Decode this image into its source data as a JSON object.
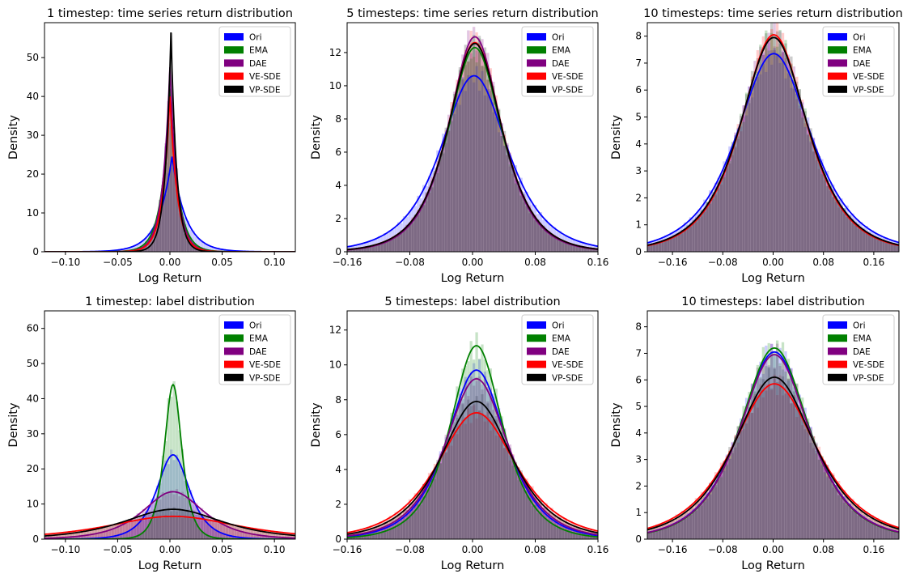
{
  "legend_labels": [
    "Ori",
    "EMA",
    "DAE",
    "VE-SDE",
    "VP-SDE"
  ],
  "series_colors": {
    "Ori": "#0000ff",
    "EMA": "#008000",
    "DAE": "#800080",
    "VE-SDE": "#ff0000",
    "VP-SDE": "#000000"
  },
  "chart_data": [
    {
      "type": "area",
      "title": "1 timestep: time series return distribution",
      "xlabel": "Log Return",
      "ylabel": "Density",
      "xlim": [
        -0.12,
        0.12
      ],
      "ylim": [
        0,
        59
      ],
      "xticks": [
        -0.1,
        -0.05,
        0,
        0.05,
        0.1
      ],
      "xtick_labels": [
        "−0.10",
        "−0.05",
        "0.00",
        "0.05",
        "0.10"
      ],
      "yticks": [
        0,
        10,
        20,
        30,
        40,
        50
      ],
      "ytick_labels": [
        "0",
        "10",
        "20",
        "30",
        "40",
        "50"
      ],
      "legend": "top-right",
      "series": [
        {
          "name": "Ori",
          "peak": 24.5,
          "center": 0.002,
          "width": 0.013,
          "shape": "laplace"
        },
        {
          "name": "EMA",
          "peak": 42,
          "center": 0.0,
          "width": 0.008,
          "shape": "laplace"
        },
        {
          "name": "DAE",
          "peak": 47.5,
          "center": 0.0,
          "width": 0.007,
          "shape": "laplace"
        },
        {
          "name": "VE-SDE",
          "peak": 40,
          "center": 0.0,
          "width": 0.007,
          "shape": "laplace"
        },
        {
          "name": "VP-SDE",
          "peak": 56.5,
          "center": 0.001,
          "width": 0.0055,
          "shape": "laplace"
        }
      ]
    },
    {
      "type": "area",
      "title": "5 timesteps: time series return distribution",
      "xlabel": "Log Return",
      "ylabel": "Density",
      "xlim": [
        -0.16,
        0.16
      ],
      "ylim": [
        0,
        13.8
      ],
      "xticks": [
        -0.16,
        -0.08,
        0,
        0.08,
        0.16
      ],
      "xtick_labels": [
        "−0.16",
        "−0.08",
        "0.00",
        "0.08",
        "0.16"
      ],
      "yticks": [
        0,
        2,
        4,
        6,
        8,
        10,
        12
      ],
      "ytick_labels": [
        "0",
        "2",
        "4",
        "6",
        "8",
        "10",
        "12"
      ],
      "legend": "top-right",
      "series": [
        {
          "name": "Ori",
          "peak": 10.6,
          "center": 0.002,
          "width": 0.038,
          "shape": "sech"
        },
        {
          "name": "EMA",
          "peak": 12.3,
          "center": 0.003,
          "width": 0.031,
          "shape": "sech"
        },
        {
          "name": "DAE",
          "peak": 12.95,
          "center": 0.003,
          "width": 0.03,
          "shape": "sech"
        },
        {
          "name": "VE-SDE",
          "peak": 12.6,
          "center": 0.003,
          "width": 0.031,
          "shape": "sech"
        },
        {
          "name": "VP-SDE",
          "peak": 12.55,
          "center": 0.003,
          "width": 0.031,
          "shape": "sech"
        }
      ]
    },
    {
      "type": "area",
      "title": "10 timesteps: time series return distribution",
      "xlabel": "Log Return",
      "ylabel": "Density",
      "xlim": [
        -0.2,
        0.2
      ],
      "ylim": [
        0,
        8.5
      ],
      "xticks": [
        -0.16,
        -0.08,
        0,
        0.08,
        0.16
      ],
      "xtick_labels": [
        "−0.16",
        "−0.08",
        "0.00",
        "0.08",
        "0.16"
      ],
      "yticks": [
        0,
        1,
        2,
        3,
        4,
        5,
        6,
        7,
        8
      ],
      "ytick_labels": [
        "0",
        "1",
        "2",
        "3",
        "4",
        "5",
        "6",
        "7",
        "8"
      ],
      "legend": "top-right",
      "series": [
        {
          "name": "Ori",
          "peak": 7.35,
          "center": 0.001,
          "width": 0.053,
          "shape": "sech"
        },
        {
          "name": "EMA",
          "peak": 7.95,
          "center": 0.001,
          "width": 0.048,
          "shape": "sech"
        },
        {
          "name": "DAE",
          "peak": 7.95,
          "center": 0.001,
          "width": 0.048,
          "shape": "sech"
        },
        {
          "name": "VE-SDE",
          "peak": 8.05,
          "center": 0.001,
          "width": 0.047,
          "shape": "sech"
        },
        {
          "name": "VP-SDE",
          "peak": 7.95,
          "center": 0.001,
          "width": 0.048,
          "shape": "sech"
        }
      ]
    },
    {
      "type": "area",
      "title": "1 timestep: label distribution",
      "xlabel": "Log Return",
      "ylabel": "Density",
      "xlim": [
        -0.12,
        0.12
      ],
      "ylim": [
        0,
        65
      ],
      "xticks": [
        -0.1,
        -0.05,
        0,
        0.05,
        0.1
      ],
      "xtick_labels": [
        "−0.10",
        "−0.05",
        "0.00",
        "0.05",
        "0.10"
      ],
      "yticks": [
        0,
        10,
        20,
        30,
        40,
        50,
        60
      ],
      "ytick_labels": [
        "0",
        "10",
        "20",
        "30",
        "40",
        "50",
        "60"
      ],
      "legend": "top-right",
      "series": [
        {
          "name": "Ori",
          "peak": 24,
          "center": 0.003,
          "width": 0.014,
          "shape": "sech"
        },
        {
          "name": "EMA",
          "peak": 44,
          "center": 0.003,
          "width": 0.0075,
          "shape": "sech"
        },
        {
          "name": "DAE",
          "peak": 13.5,
          "center": 0.003,
          "width": 0.026,
          "shape": "sech"
        },
        {
          "name": "VE-SDE",
          "peak": 6.5,
          "center": 0.003,
          "width": 0.055,
          "shape": "sech"
        },
        {
          "name": "VP-SDE",
          "peak": 8.5,
          "center": 0.003,
          "width": 0.042,
          "shape": "sech"
        }
      ]
    },
    {
      "type": "area",
      "title": "5 timesteps: label distribution",
      "xlabel": "Log Return",
      "ylabel": "Density",
      "xlim": [
        -0.16,
        0.16
      ],
      "ylim": [
        0,
        13.1
      ],
      "xticks": [
        -0.16,
        -0.08,
        0,
        0.08,
        0.16
      ],
      "xtick_labels": [
        "−0.16",
        "−0.08",
        "0.00",
        "0.08",
        "0.16"
      ],
      "yticks": [
        0,
        2,
        4,
        6,
        8,
        10,
        12
      ],
      "ytick_labels": [
        "0",
        "2",
        "4",
        "6",
        "8",
        "10",
        "12"
      ],
      "legend": "top-right",
      "series": [
        {
          "name": "Ori",
          "peak": 9.7,
          "center": 0.005,
          "width": 0.034,
          "shape": "sech"
        },
        {
          "name": "EMA",
          "peak": 11.1,
          "center": 0.005,
          "width": 0.03,
          "shape": "sech"
        },
        {
          "name": "DAE",
          "peak": 9.2,
          "center": 0.005,
          "width": 0.036,
          "shape": "sech"
        },
        {
          "name": "VE-SDE",
          "peak": 7.25,
          "center": 0.005,
          "width": 0.045,
          "shape": "sech"
        },
        {
          "name": "VP-SDE",
          "peak": 7.9,
          "center": 0.005,
          "width": 0.041,
          "shape": "sech"
        }
      ]
    },
    {
      "type": "area",
      "title": "10 timesteps: label distribution",
      "xlabel": "Log Return",
      "ylabel": "Density",
      "xlim": [
        -0.2,
        0.2
      ],
      "ylim": [
        0,
        8.6
      ],
      "xticks": [
        -0.16,
        -0.08,
        0,
        0.08,
        0.16
      ],
      "xtick_labels": [
        "−0.16",
        "−0.08",
        "0.00",
        "0.08",
        "0.16"
      ],
      "yticks": [
        0,
        1,
        2,
        3,
        4,
        5,
        6,
        7,
        8
      ],
      "ytick_labels": [
        "0",
        "1",
        "2",
        "3",
        "4",
        "5",
        "6",
        "7",
        "8"
      ],
      "legend": "top-right",
      "series": [
        {
          "name": "Ori",
          "peak": 7.05,
          "center": 0.002,
          "width": 0.05,
          "shape": "sech"
        },
        {
          "name": "EMA",
          "peak": 7.2,
          "center": 0.002,
          "width": 0.049,
          "shape": "sech"
        },
        {
          "name": "DAE",
          "peak": 6.95,
          "center": 0.002,
          "width": 0.05,
          "shape": "sech"
        },
        {
          "name": "VE-SDE",
          "peak": 5.85,
          "center": 0.002,
          "width": 0.06,
          "shape": "sech"
        },
        {
          "name": "VP-SDE",
          "peak": 6.1,
          "center": 0.002,
          "width": 0.057,
          "shape": "sech"
        }
      ]
    }
  ]
}
